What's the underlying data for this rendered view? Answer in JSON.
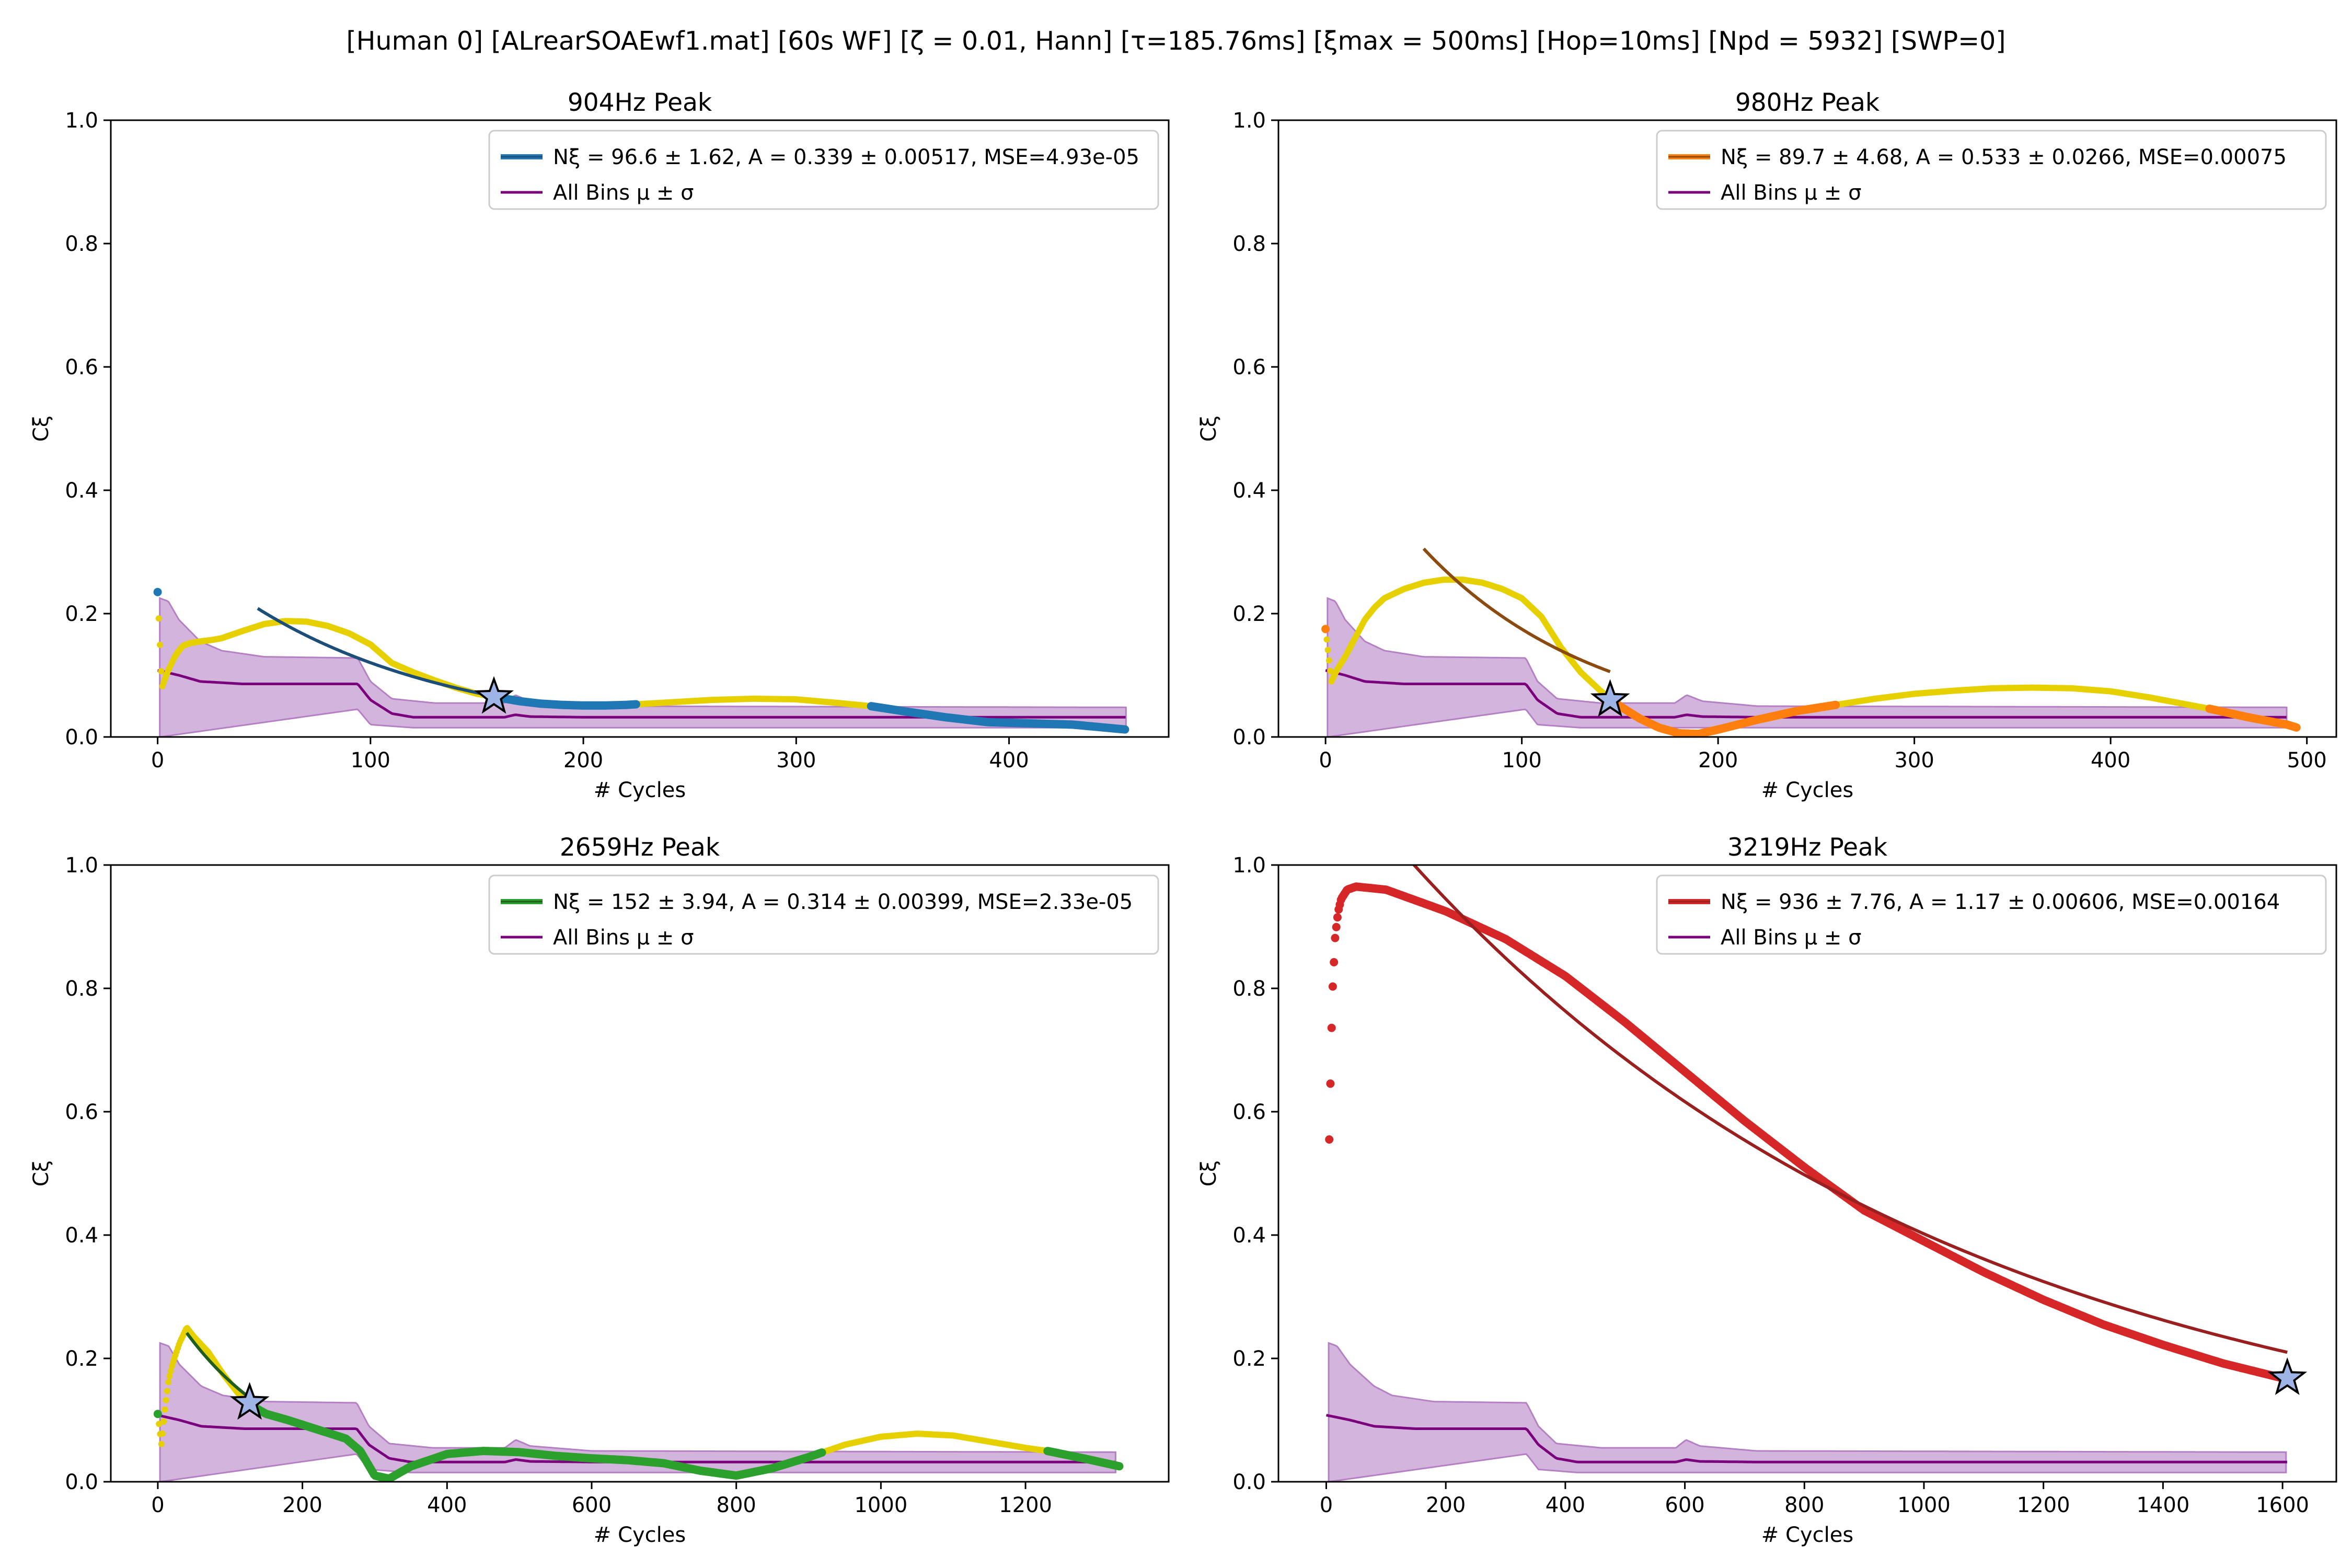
{
  "suptitle": "[Human 0]   [ALrearSOAEwf1.mat]   [60s WF]   [ζ = 0.01, Hann]   [τ=185.76ms]   [ξmax = 500ms]   [Hop=10ms]   [Npd = 5932]   [SWP=0]",
  "colors": {
    "band": "#c49bd1",
    "mean": "#7b007b",
    "yellow": "#e6d000",
    "star": "#9fb4e6"
  },
  "chart_data": [
    {
      "type": "line",
      "title": "904Hz Peak",
      "xlabel": "# Cycles",
      "ylabel": "Cξ",
      "xlim": [
        -22,
        475
      ],
      "ylim": [
        0,
        1
      ],
      "xticks": [
        0,
        100,
        200,
        300,
        400
      ],
      "yticks": [
        0.0,
        0.2,
        0.4,
        0.6,
        0.8,
        1.0
      ],
      "legend_position": "top-right",
      "color": "#1f77b4",
      "fit_color": "#1c4e7a",
      "legend": [
        "Nξ = 96.6 ± 1.62, A = 0.339 ± 0.00517, MSE=4.93e-05",
        "All Bins μ ± σ"
      ],
      "data": [
        [
          0,
          0.235
        ],
        [
          2,
          0.08
        ],
        [
          4,
          0.1
        ],
        [
          6,
          0.115
        ],
        [
          8,
          0.13
        ],
        [
          10,
          0.14
        ],
        [
          12,
          0.148
        ],
        [
          15,
          0.152
        ],
        [
          20,
          0.155
        ],
        [
          25,
          0.157
        ],
        [
          30,
          0.16
        ],
        [
          40,
          0.172
        ],
        [
          50,
          0.183
        ],
        [
          60,
          0.188
        ],
        [
          70,
          0.187
        ],
        [
          80,
          0.18
        ],
        [
          90,
          0.168
        ],
        [
          100,
          0.15
        ],
        [
          110,
          0.12
        ],
        [
          120,
          0.105
        ],
        [
          130,
          0.092
        ],
        [
          140,
          0.08
        ],
        [
          150,
          0.07
        ],
        [
          160,
          0.064
        ],
        [
          170,
          0.058
        ],
        [
          180,
          0.054
        ],
        [
          190,
          0.052
        ],
        [
          200,
          0.051
        ],
        [
          210,
          0.051
        ],
        [
          220,
          0.052
        ],
        [
          240,
          0.056
        ],
        [
          260,
          0.06
        ],
        [
          280,
          0.062
        ],
        [
          300,
          0.061
        ],
        [
          320,
          0.055
        ],
        [
          335,
          0.05
        ],
        [
          350,
          0.042
        ],
        [
          370,
          0.032
        ],
        [
          390,
          0.024
        ],
        [
          410,
          0.022
        ],
        [
          430,
          0.02
        ],
        [
          455,
          0.012
        ]
      ],
      "highlight": [
        [
          [
            0,
            0
          ],
          [
            40,
            0
          ],
          [
            160,
            450
          ]
        ],
        [
          [
            0,
            0
          ],
          [
            25,
            0
          ],
          [
            155,
            225
          ],
          [
            335,
            460
          ]
        ]
      ],
      "fit": {
        "N": 96.6,
        "A": 0.339,
        "x": [
          47,
          160
        ]
      },
      "star": [
        158,
        0.065
      ],
      "mean": [
        [
          0,
          0.108
        ],
        [
          10,
          0.1
        ],
        [
          20,
          0.09
        ],
        [
          40,
          0.086
        ],
        [
          94,
          0.086
        ],
        [
          100,
          0.06
        ],
        [
          110,
          0.038
        ],
        [
          120,
          0.032
        ],
        [
          163,
          0.032
        ],
        [
          168,
          0.036
        ],
        [
          175,
          0.033
        ],
        [
          200,
          0.032
        ],
        [
          455,
          0.032
        ]
      ],
      "upper": [
        [
          1,
          0.225
        ],
        [
          5,
          0.22
        ],
        [
          10,
          0.19
        ],
        [
          20,
          0.155
        ],
        [
          30,
          0.14
        ],
        [
          50,
          0.13
        ],
        [
          94,
          0.128
        ],
        [
          100,
          0.09
        ],
        [
          110,
          0.062
        ],
        [
          130,
          0.055
        ],
        [
          163,
          0.055
        ],
        [
          168,
          0.068
        ],
        [
          175,
          0.058
        ],
        [
          200,
          0.05
        ],
        [
          455,
          0.048
        ]
      ],
      "lower": [
        [
          1,
          0.0
        ],
        [
          94,
          0.045
        ],
        [
          100,
          0.02
        ],
        [
          120,
          0.015
        ],
        [
          455,
          0.015
        ]
      ]
    },
    {
      "type": "line",
      "title": "980Hz Peak",
      "xlabel": "# Cycles",
      "ylabel": "Cξ",
      "xlim": [
        -24,
        515
      ],
      "ylim": [
        0,
        1
      ],
      "xticks": [
        0,
        100,
        200,
        300,
        400,
        500
      ],
      "yticks": [
        0.0,
        0.2,
        0.4,
        0.6,
        0.8,
        1.0
      ],
      "legend_position": "top-right",
      "color": "#ff7f0e",
      "fit_color": "#8a4a10",
      "legend": [
        "Nξ = 89.7 ± 4.68, A = 0.533 ± 0.0266, MSE=0.00075",
        "All Bins μ ± σ"
      ],
      "data": [
        [
          0,
          0.175
        ],
        [
          3,
          0.09
        ],
        [
          6,
          0.11
        ],
        [
          10,
          0.13
        ],
        [
          15,
          0.16
        ],
        [
          20,
          0.19
        ],
        [
          25,
          0.21
        ],
        [
          30,
          0.225
        ],
        [
          40,
          0.24
        ],
        [
          50,
          0.25
        ],
        [
          60,
          0.255
        ],
        [
          70,
          0.255
        ],
        [
          80,
          0.25
        ],
        [
          90,
          0.24
        ],
        [
          100,
          0.225
        ],
        [
          110,
          0.195
        ],
        [
          120,
          0.145
        ],
        [
          130,
          0.105
        ],
        [
          140,
          0.075
        ],
        [
          145,
          0.062
        ],
        [
          150,
          0.05
        ],
        [
          160,
          0.03
        ],
        [
          170,
          0.015
        ],
        [
          180,
          0.006
        ],
        [
          190,
          0.005
        ],
        [
          200,
          0.012
        ],
        [
          220,
          0.028
        ],
        [
          240,
          0.042
        ],
        [
          260,
          0.052
        ],
        [
          280,
          0.062
        ],
        [
          300,
          0.07
        ],
        [
          320,
          0.075
        ],
        [
          340,
          0.079
        ],
        [
          360,
          0.08
        ],
        [
          380,
          0.079
        ],
        [
          400,
          0.074
        ],
        [
          420,
          0.064
        ],
        [
          440,
          0.052
        ],
        [
          450,
          0.046
        ],
        [
          470,
          0.032
        ],
        [
          490,
          0.02
        ],
        [
          495,
          0.015
        ]
      ],
      "highlight": [
        [
          [
            0,
            0
          ],
          [
            25,
            0
          ],
          [
            145,
            450
          ]
        ],
        [
          [
            0,
            0
          ],
          [
            25,
            0
          ],
          [
            145,
            260
          ],
          [
            450,
            500
          ]
        ]
      ],
      "fit": {
        "N": 89.7,
        "A": 0.533,
        "x": [
          50,
          145
        ]
      },
      "star": [
        145,
        0.06
      ],
      "mean": [
        [
          0,
          0.108
        ],
        [
          10,
          0.1
        ],
        [
          20,
          0.09
        ],
        [
          40,
          0.086
        ],
        [
          102,
          0.086
        ],
        [
          108,
          0.06
        ],
        [
          118,
          0.038
        ],
        [
          130,
          0.032
        ],
        [
          178,
          0.032
        ],
        [
          184,
          0.036
        ],
        [
          192,
          0.033
        ],
        [
          220,
          0.032
        ],
        [
          490,
          0.032
        ]
      ],
      "upper": [
        [
          1,
          0.225
        ],
        [
          5,
          0.22
        ],
        [
          10,
          0.19
        ],
        [
          20,
          0.155
        ],
        [
          30,
          0.14
        ],
        [
          50,
          0.13
        ],
        [
          102,
          0.128
        ],
        [
          108,
          0.09
        ],
        [
          118,
          0.062
        ],
        [
          140,
          0.055
        ],
        [
          178,
          0.055
        ],
        [
          184,
          0.068
        ],
        [
          192,
          0.058
        ],
        [
          220,
          0.05
        ],
        [
          490,
          0.048
        ]
      ],
      "lower": [
        [
          1,
          0.0
        ],
        [
          102,
          0.045
        ],
        [
          108,
          0.02
        ],
        [
          130,
          0.015
        ],
        [
          490,
          0.015
        ]
      ]
    },
    {
      "type": "line",
      "title": "2659Hz Peak",
      "xlabel": "# Cycles",
      "ylabel": "Cξ",
      "xlim": [
        -65,
        1398
      ],
      "ylim": [
        0,
        1
      ],
      "xticks": [
        0,
        200,
        400,
        600,
        800,
        1000,
        1200
      ],
      "yticks": [
        0.0,
        0.2,
        0.4,
        0.6,
        0.8,
        1.0
      ],
      "legend_position": "top-right",
      "color": "#2ca02c",
      "fit_color": "#1f5e1f",
      "legend": [
        "Nξ = 152 ± 3.94, A = 0.314 ± 0.00399, MSE=2.33e-05",
        "All Bins μ ± σ"
      ],
      "data": [
        [
          0,
          0.11
        ],
        [
          5,
          0.06
        ],
        [
          10,
          0.12
        ],
        [
          15,
          0.165
        ],
        [
          20,
          0.19
        ],
        [
          30,
          0.225
        ],
        [
          40,
          0.25
        ],
        [
          50,
          0.235
        ],
        [
          70,
          0.21
        ],
        [
          90,
          0.175
        ],
        [
          110,
          0.145
        ],
        [
          127,
          0.125
        ],
        [
          150,
          0.11
        ],
        [
          180,
          0.1
        ],
        [
          220,
          0.085
        ],
        [
          260,
          0.07
        ],
        [
          280,
          0.05
        ],
        [
          300,
          0.01
        ],
        [
          320,
          0.005
        ],
        [
          350,
          0.025
        ],
        [
          400,
          0.045
        ],
        [
          450,
          0.05
        ],
        [
          500,
          0.048
        ],
        [
          550,
          0.042
        ],
        [
          600,
          0.038
        ],
        [
          650,
          0.035
        ],
        [
          700,
          0.03
        ],
        [
          750,
          0.018
        ],
        [
          800,
          0.01
        ],
        [
          850,
          0.022
        ],
        [
          900,
          0.04
        ],
        [
          950,
          0.06
        ],
        [
          1000,
          0.073
        ],
        [
          1050,
          0.078
        ],
        [
          1100,
          0.075
        ],
        [
          1150,
          0.065
        ],
        [
          1200,
          0.055
        ],
        [
          1230,
          0.05
        ],
        [
          1280,
          0.038
        ],
        [
          1330,
          0.025
        ]
      ],
      "highlight": [
        [
          [
            0,
            0
          ],
          [
            20,
            0
          ],
          [
            127,
            450
          ]
        ],
        [
          [
            0,
            0
          ],
          [
            20,
            0
          ],
          [
            127,
            920
          ],
          [
            1230,
            1335
          ]
        ]
      ],
      "fit": {
        "N": 152,
        "A": 0.314,
        "x": [
          40,
          127
        ]
      },
      "star": [
        127,
        0.128
      ],
      "mean": [
        [
          0,
          0.108
        ],
        [
          30,
          0.1
        ],
        [
          60,
          0.09
        ],
        [
          120,
          0.086
        ],
        [
          275,
          0.086
        ],
        [
          292,
          0.06
        ],
        [
          320,
          0.038
        ],
        [
          350,
          0.032
        ],
        [
          480,
          0.032
        ],
        [
          495,
          0.036
        ],
        [
          515,
          0.033
        ],
        [
          600,
          0.032
        ],
        [
          1325,
          0.032
        ]
      ],
      "upper": [
        [
          3,
          0.225
        ],
        [
          15,
          0.22
        ],
        [
          30,
          0.19
        ],
        [
          60,
          0.155
        ],
        [
          90,
          0.14
        ],
        [
          150,
          0.13
        ],
        [
          275,
          0.128
        ],
        [
          292,
          0.09
        ],
        [
          320,
          0.062
        ],
        [
          380,
          0.055
        ],
        [
          480,
          0.055
        ],
        [
          495,
          0.068
        ],
        [
          515,
          0.058
        ],
        [
          600,
          0.05
        ],
        [
          1325,
          0.048
        ]
      ],
      "lower": [
        [
          3,
          0.0
        ],
        [
          275,
          0.045
        ],
        [
          292,
          0.02
        ],
        [
          350,
          0.015
        ],
        [
          1325,
          0.015
        ]
      ]
    },
    {
      "type": "line",
      "title": "3219Hz Peak",
      "xlabel": "# Cycles",
      "ylabel": "Cξ",
      "xlim": [
        -80,
        1690
      ],
      "ylim": [
        0,
        1
      ],
      "xticks": [
        0,
        200,
        400,
        600,
        800,
        1000,
        1200,
        1400,
        1600
      ],
      "yticks": [
        0.0,
        0.2,
        0.4,
        0.6,
        0.8,
        1.0
      ],
      "legend_position": "top-right",
      "color": "#d62728",
      "fit_color": "#9a1f1f",
      "legend": [
        "Nξ = 936 ± 7.76, A = 1.17 ± 0.00606, MSE=0.00164",
        "All Bins μ ± σ"
      ],
      "data": [
        [
          5,
          0.555
        ],
        [
          10,
          0.785
        ],
        [
          15,
          0.885
        ],
        [
          20,
          0.925
        ],
        [
          25,
          0.945
        ],
        [
          35,
          0.96
        ],
        [
          50,
          0.965
        ],
        [
          100,
          0.96
        ],
        [
          200,
          0.925
        ],
        [
          300,
          0.88
        ],
        [
          400,
          0.82
        ],
        [
          500,
          0.745
        ],
        [
          600,
          0.665
        ],
        [
          700,
          0.585
        ],
        [
          800,
          0.51
        ],
        [
          900,
          0.44
        ],
        [
          1000,
          0.39
        ],
        [
          1100,
          0.34
        ],
        [
          1200,
          0.295
        ],
        [
          1300,
          0.255
        ],
        [
          1400,
          0.222
        ],
        [
          1500,
          0.192
        ],
        [
          1600,
          0.168
        ]
      ],
      "highlight": [],
      "fit": {
        "N": 936,
        "A": 1.17,
        "x": [
          145,
          1608
        ]
      },
      "star": [
        1608,
        0.168
      ],
      "mean": [
        [
          0,
          0.108
        ],
        [
          40,
          0.1
        ],
        [
          80,
          0.09
        ],
        [
          150,
          0.086
        ],
        [
          335,
          0.086
        ],
        [
          355,
          0.06
        ],
        [
          385,
          0.038
        ],
        [
          420,
          0.032
        ],
        [
          585,
          0.032
        ],
        [
          602,
          0.036
        ],
        [
          625,
          0.033
        ],
        [
          720,
          0.032
        ],
        [
          1608,
          0.032
        ]
      ],
      "upper": [
        [
          4,
          0.225
        ],
        [
          18,
          0.22
        ],
        [
          40,
          0.19
        ],
        [
          80,
          0.155
        ],
        [
          110,
          0.14
        ],
        [
          180,
          0.13
        ],
        [
          335,
          0.128
        ],
        [
          355,
          0.09
        ],
        [
          385,
          0.062
        ],
        [
          460,
          0.055
        ],
        [
          585,
          0.055
        ],
        [
          602,
          0.068
        ],
        [
          625,
          0.058
        ],
        [
          720,
          0.05
        ],
        [
          1608,
          0.048
        ]
      ],
      "lower": [
        [
          4,
          0.0
        ],
        [
          335,
          0.045
        ],
        [
          355,
          0.02
        ],
        [
          420,
          0.015
        ],
        [
          1608,
          0.015
        ]
      ]
    }
  ]
}
